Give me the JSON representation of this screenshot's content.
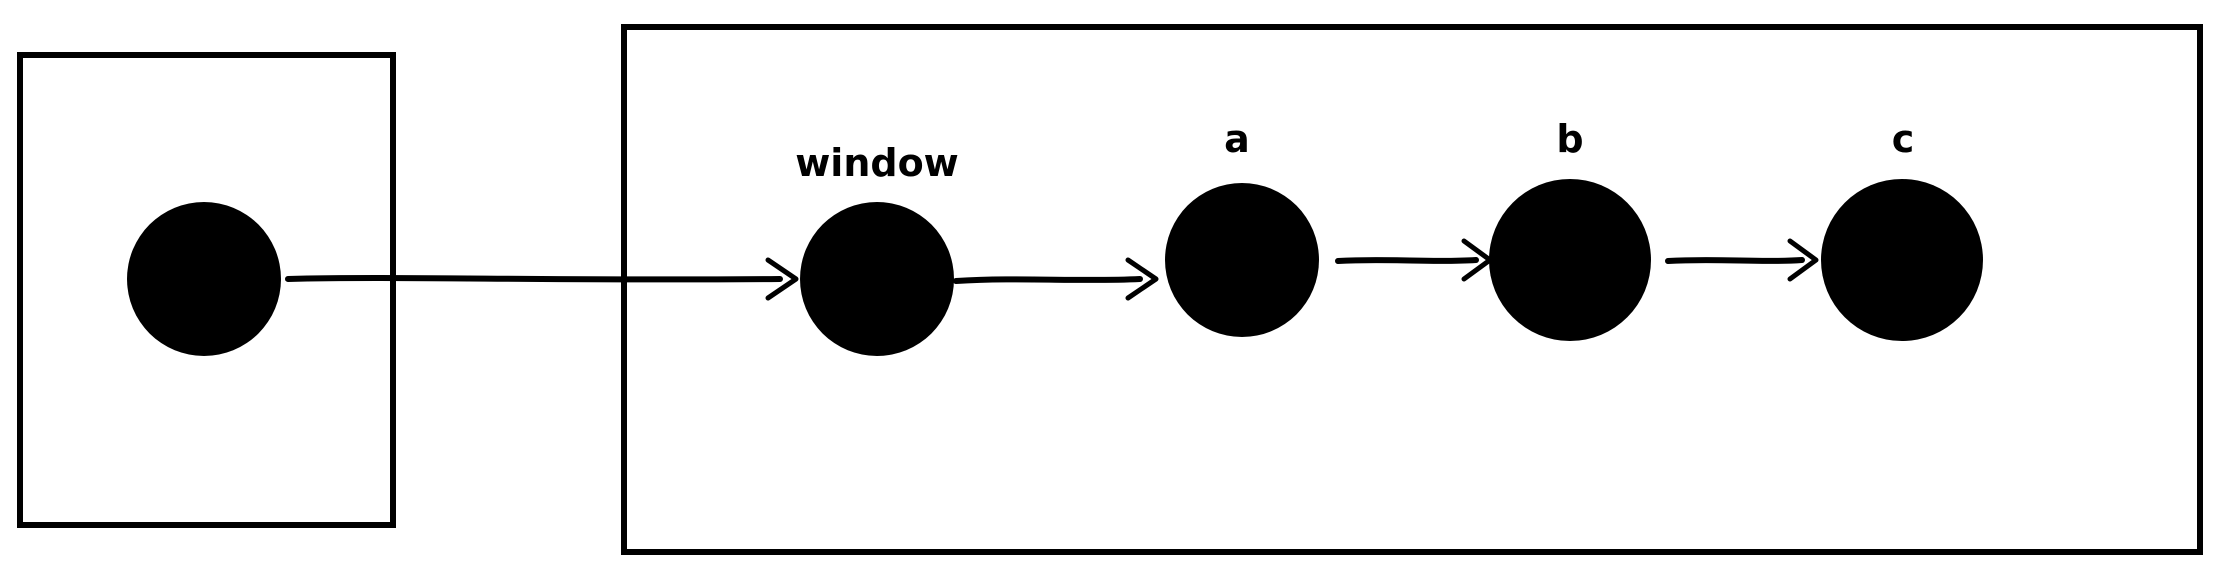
{
  "diagram": {
    "colors": {
      "ink": "#000000",
      "background": "#ffffff"
    },
    "groups": [
      {
        "id": "left-frame"
      },
      {
        "id": "right-frame"
      }
    ],
    "nodes": [
      {
        "id": "origin",
        "label": ""
      },
      {
        "id": "window",
        "label": "window"
      },
      {
        "id": "a",
        "label": "a"
      },
      {
        "id": "b",
        "label": "b"
      },
      {
        "id": "c",
        "label": "c"
      }
    ],
    "edges": [
      {
        "from": "origin",
        "to": "window"
      },
      {
        "from": "window",
        "to": "a"
      },
      {
        "from": "a",
        "to": "b"
      },
      {
        "from": "b",
        "to": "c"
      }
    ]
  }
}
